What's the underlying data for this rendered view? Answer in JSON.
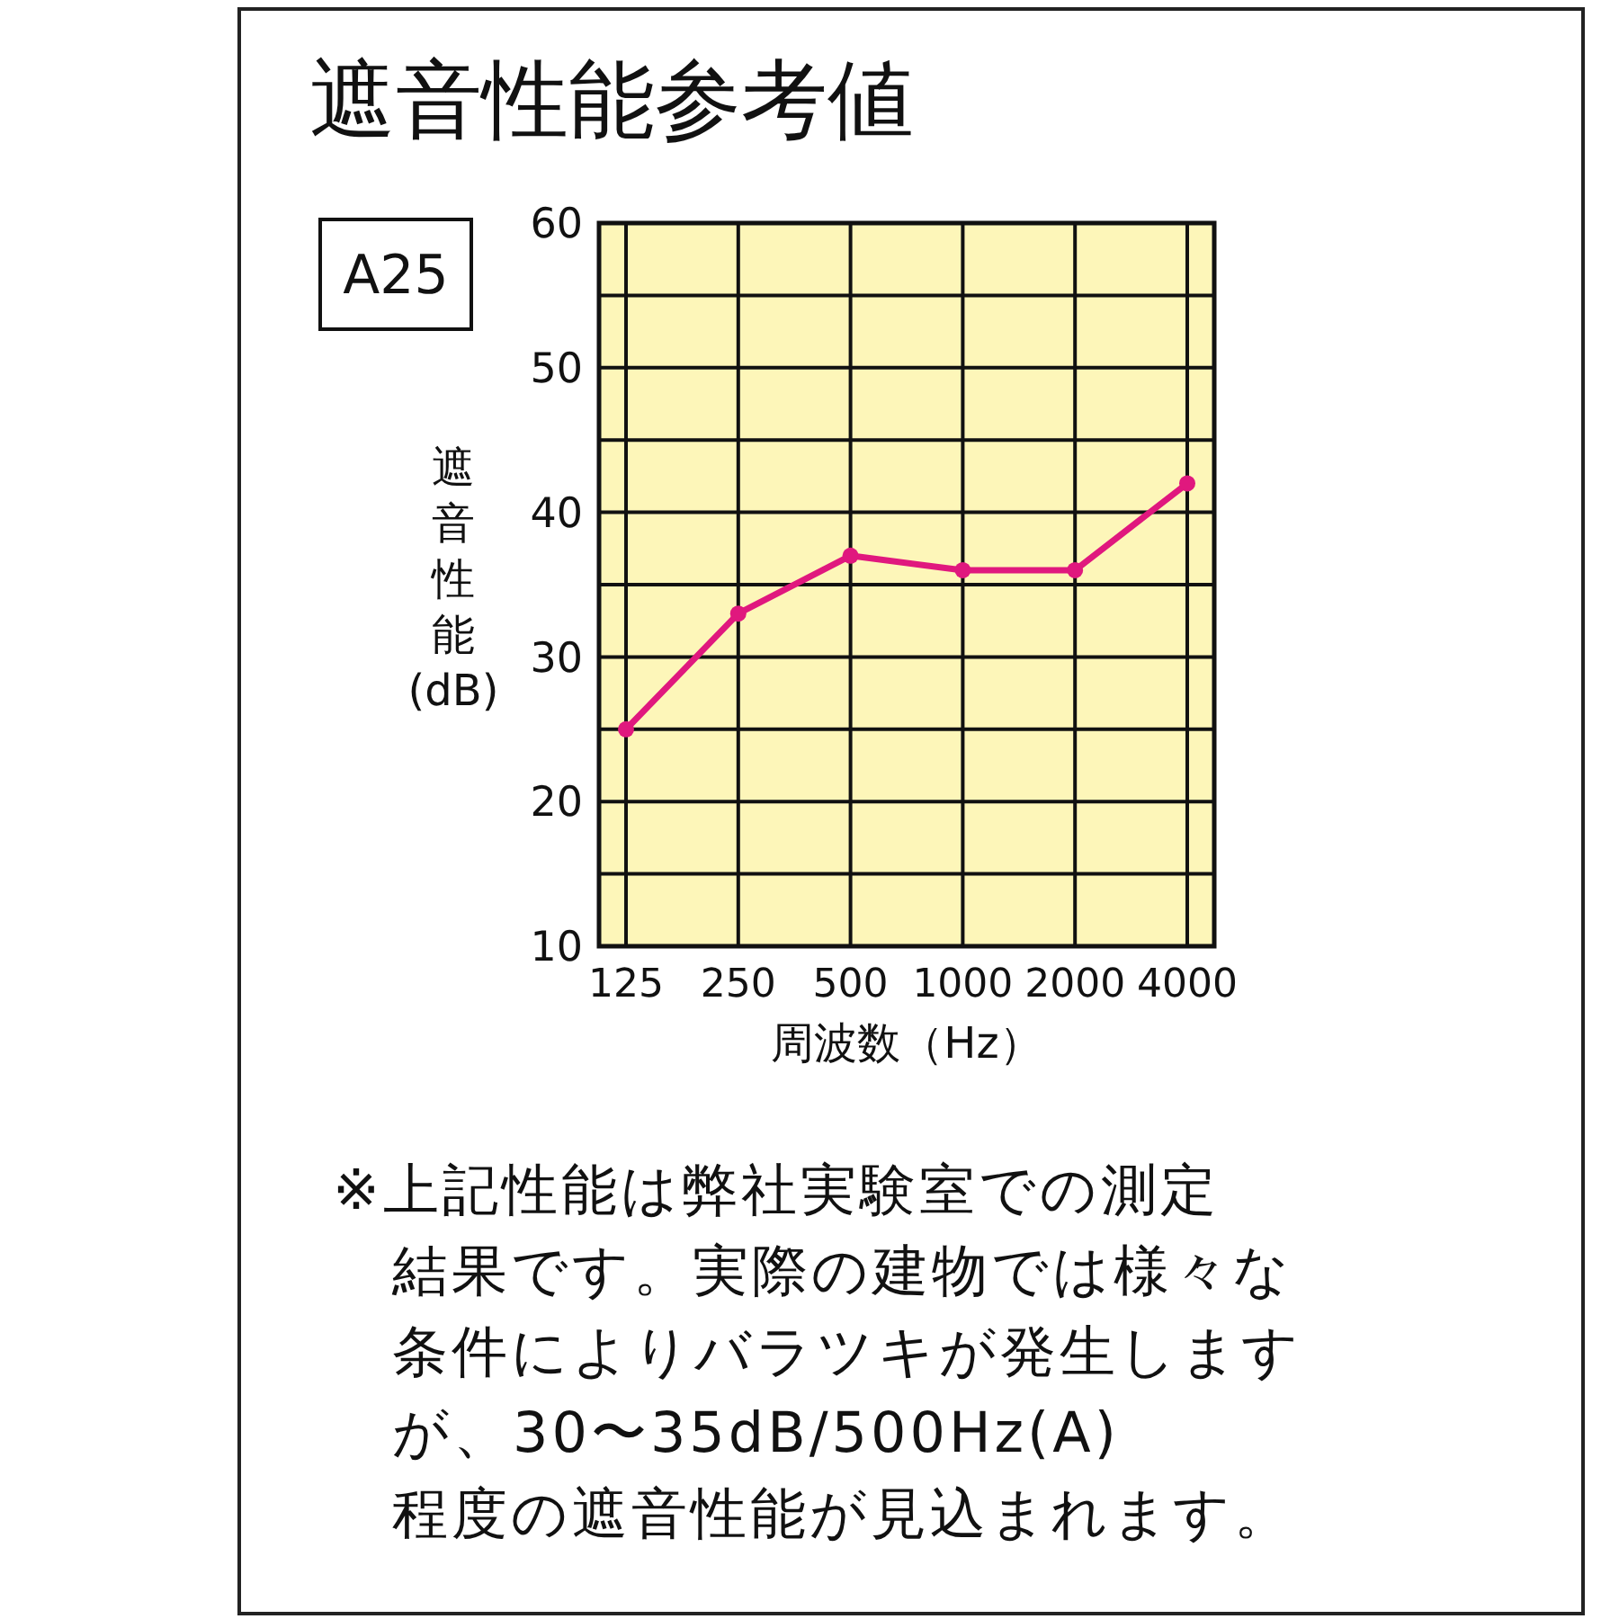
{
  "chart_data": {
    "type": "line",
    "title": "遮音性能参考値",
    "xlabel": "周波数（Hz）",
    "ylabel": "遮音性能(dB)",
    "categories": [
      "125",
      "250",
      "500",
      "1000",
      "2000",
      "4000"
    ],
    "series": [
      {
        "color": "#e0187e",
        "values": [
          25,
          33,
          37,
          36,
          36,
          42
        ]
      }
    ],
    "ylim": [
      10,
      60
    ],
    "yticks": [
      10,
      {
        "value": 15,
        "label": null
      },
      20,
      {
        "value": 25,
        "label": null
      },
      30,
      {
        "value": 35,
        "label": null
      },
      40,
      {
        "value": 45,
        "label": null
      },
      50,
      {
        "value": 55,
        "label": null
      },
      60
    ],
    "grid": true,
    "marker": "circle",
    "line_style": "solid",
    "annotations": [
      "A25",
      "※上記性能は弊社実験室での測定結果です。実際の建物では様々な条件によりバラツキが発生しますが、30〜35dB/500Hz(A)程度の遮音性能が見込まれます。"
    ]
  }
}
